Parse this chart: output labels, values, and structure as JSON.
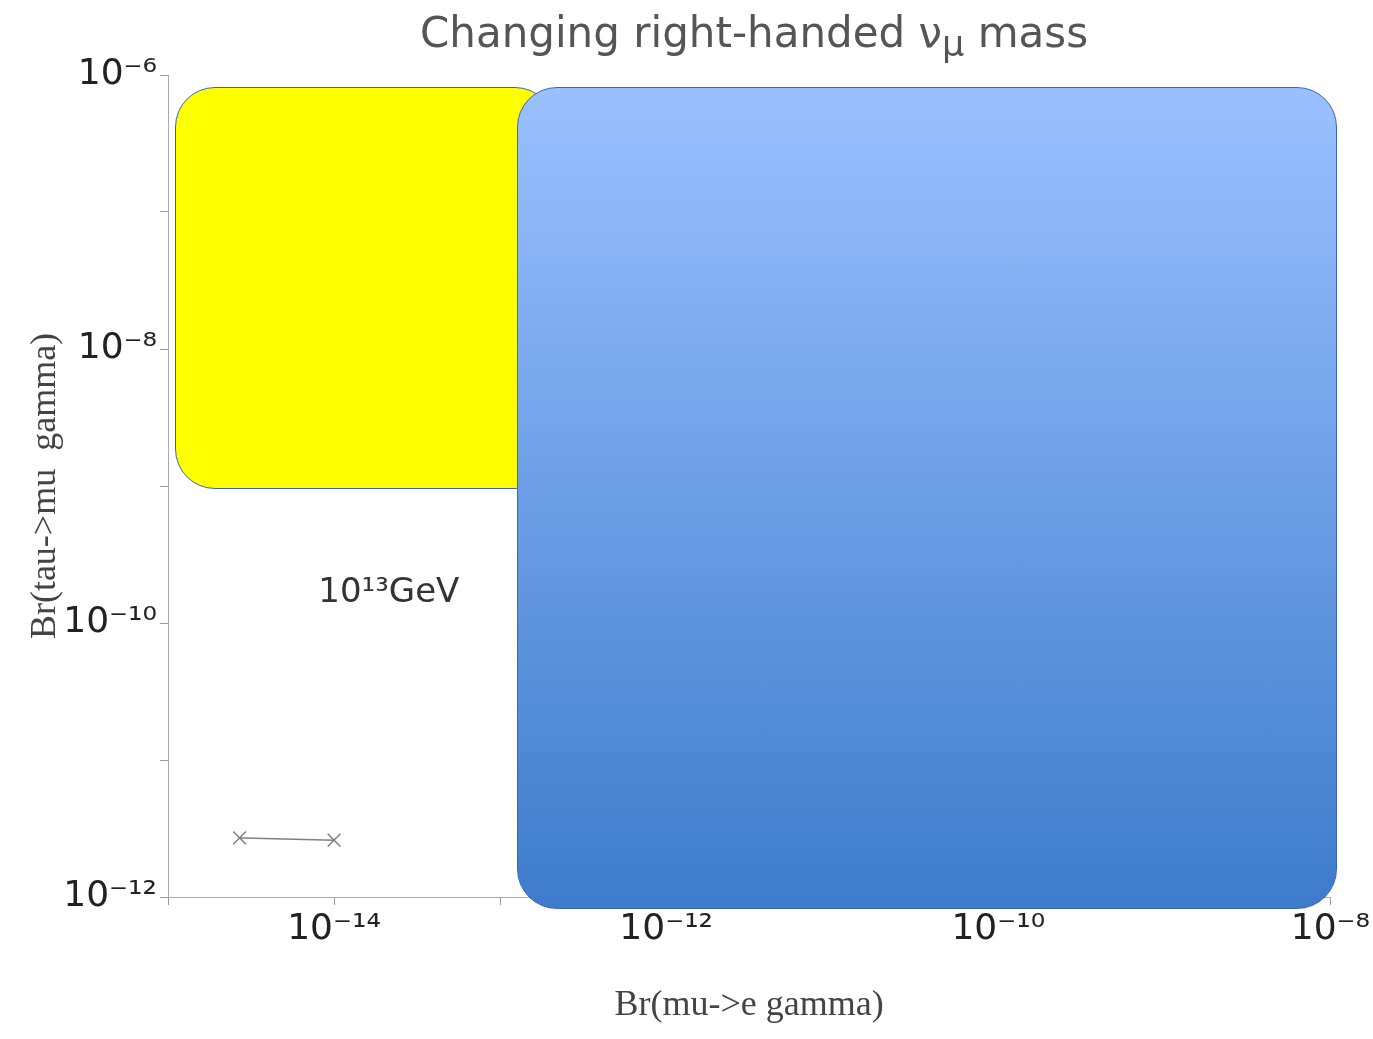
{
  "chart_data": {
    "type": "line",
    "title": "Changing right-handed ν$_{μ}$  mass",
    "xlabel": "Br(mu->e gamma)",
    "ylabel": "Br(tau->mu  gamma)",
    "log": "xy",
    "grid": false,
    "legend": false,
    "marker": "cross",
    "line_style": "solid",
    "xlim": [
      1e-15,
      1e-08
    ],
    "ylim": [
      1e-12,
      1e-06
    ],
    "xticks": [
      {
        "value": 1e-15,
        "label": null
      },
      {
        "value": 1e-14,
        "label": "10⁻¹⁴"
      },
      {
        "value": 1e-13,
        "label": null
      },
      {
        "value": 1e-12,
        "label": "10⁻¹²"
      },
      {
        "value": 1e-11,
        "label": null
      },
      {
        "value": 1e-10,
        "label": "10⁻¹⁰"
      },
      {
        "value": 1e-09,
        "label": null
      },
      {
        "value": 1e-08,
        "label": "10⁻⁸"
      }
    ],
    "yticks": [
      {
        "value": 1e-12,
        "label": "10⁻¹²"
      },
      {
        "value": 1e-11,
        "label": null
      },
      {
        "value": 1e-10,
        "label": "10⁻¹⁰"
      },
      {
        "value": 1e-09,
        "label": null
      },
      {
        "value": 1e-08,
        "label": "10⁻⁸"
      },
      {
        "value": 1e-07,
        "label": null
      },
      {
        "value": 1e-06,
        "label": "10⁻⁶"
      }
    ],
    "series": [
      {
        "color": "#808080",
        "x": [
          2.7e-15,
          1e-14
        ],
        "values": [
          2.7e-12,
          2.6e-12
        ]
      }
    ],
    "annotations": [
      "10¹³GeV"
    ]
  }
}
